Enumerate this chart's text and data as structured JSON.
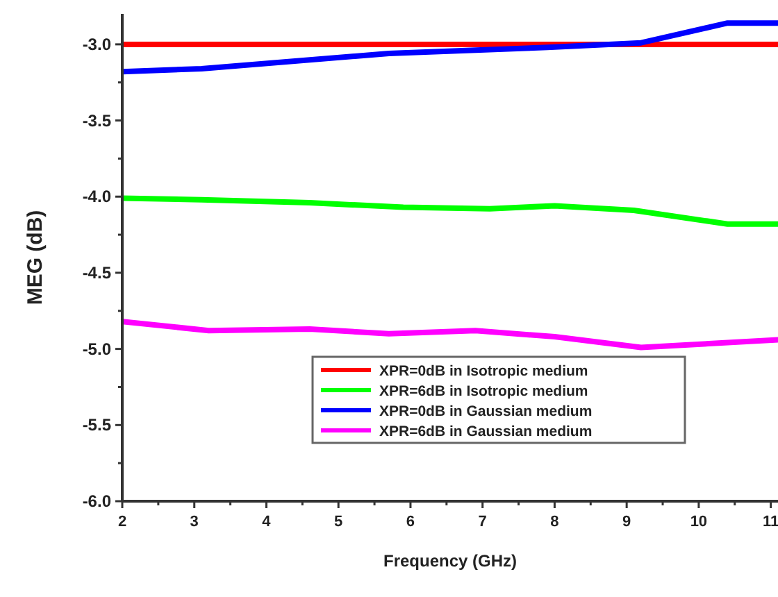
{
  "chart_data": {
    "type": "line",
    "xlabel": "Frequency (GHz)",
    "ylabel": "MEG (dB)",
    "xlim": [
      2,
      11.1
    ],
    "ylim": [
      -6,
      -2.8
    ],
    "xticks": [
      2,
      {
        "value": 2.5,
        "label": null
      },
      3,
      {
        "value": 3.5,
        "label": null
      },
      4,
      {
        "value": 4.5,
        "label": null
      },
      5,
      {
        "value": 5.5,
        "label": null
      },
      6,
      {
        "value": 6.5,
        "label": null
      },
      7,
      {
        "value": 7.5,
        "label": null
      },
      8,
      {
        "value": 8.5,
        "label": null
      },
      9,
      {
        "value": 9.5,
        "label": null
      },
      10,
      {
        "value": 10.5,
        "label": null
      },
      11
    ],
    "yticks": [
      {
        "value": -6.0,
        "label": "-6.0"
      },
      {
        "value": -5.75,
        "label": null
      },
      {
        "value": -5.5,
        "label": "-5.5"
      },
      {
        "value": -5.25,
        "label": null
      },
      {
        "value": -5.0,
        "label": "-5.0"
      },
      {
        "value": -4.75,
        "label": null
      },
      {
        "value": -4.5,
        "label": "-4.5"
      },
      {
        "value": -4.25,
        "label": null
      },
      {
        "value": -4.0,
        "label": "-4.0"
      },
      {
        "value": -3.75,
        "label": null
      },
      {
        "value": -3.5,
        "label": "-3.5"
      },
      {
        "value": -3.25,
        "label": null
      },
      {
        "value": -3.0,
        "label": "-3.0"
      }
    ],
    "grid": false,
    "legend": "bottom",
    "marker": "none",
    "line_style": "solid",
    "series": [
      {
        "name": "XPR=0dB in Isotropic medium",
        "color": "#ff0000",
        "x": [
          2,
          11.1
        ],
        "values": [
          -3.0,
          -3.0
        ]
      },
      {
        "name": "XPR=6dB in Isotropic medium",
        "color": "#00ff00",
        "x": [
          2,
          3.1,
          4.6,
          5.9,
          7.1,
          8,
          9.1,
          10.4,
          11.1
        ],
        "values": [
          -4.01,
          -4.02,
          -4.04,
          -4.07,
          -4.08,
          -4.06,
          -4.09,
          -4.18,
          -4.18
        ]
      },
      {
        "name": "XPR=0dB in Gaussian medium",
        "color": "#0000ff",
        "x": [
          2,
          3.1,
          5.7,
          7.9,
          9.2,
          10.4,
          11.1
        ],
        "values": [
          -3.18,
          -3.16,
          -3.06,
          -3.02,
          -2.99,
          -2.86,
          -2.86
        ]
      },
      {
        "name": "XPR=6dB in Gaussian medium",
        "color": "#ff00ff",
        "x": [
          2,
          3.2,
          4.6,
          5.7,
          6.9,
          8,
          9.2,
          11.1
        ],
        "values": [
          -4.82,
          -4.88,
          -4.87,
          -4.9,
          -4.88,
          -4.92,
          -4.99,
          -4.94
        ]
      }
    ]
  }
}
